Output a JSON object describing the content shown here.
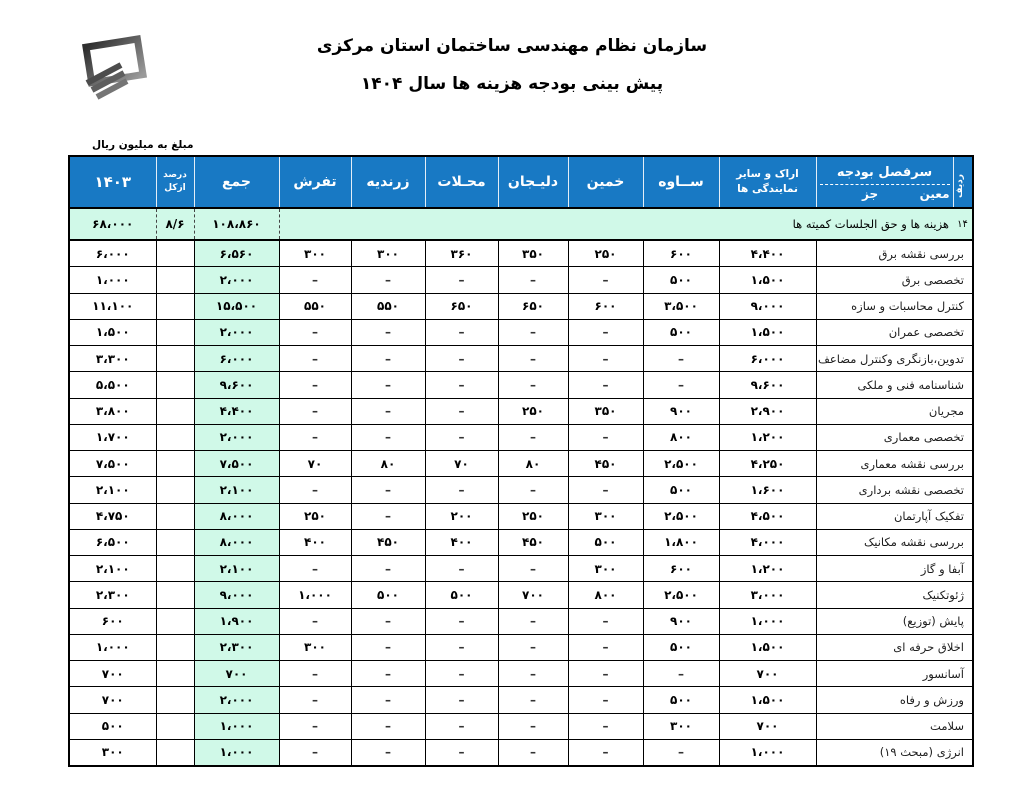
{
  "page": {
    "title_line1": "سازمان نظام مهندسی ساختمان استان مرکزی",
    "title_line2": "پیش بینی بودجه هزینه ها  سال ۱۴۰۴",
    "unit_note": "مبلغ به میلیون ریال",
    "logo": "construction-engineering-organization-logo"
  },
  "colors": {
    "header_blue": "#1879c4",
    "highlight_green": "#d0f9e8",
    "border_black": "#000000"
  },
  "table": {
    "header": {
      "radif": "ردیف",
      "budget_heading": "سرفصل بودجه",
      "moein": "معین",
      "joz": "جز",
      "arak_line1": "اراک و سایر",
      "arak_line2": "نمایندگی ها",
      "saveh": "ســاوه",
      "khomein": "خمین",
      "delijan": "دلیـجان",
      "mahallat": "محـلات",
      "zarandieh": "زرندیه",
      "tafresh": "تفرش",
      "jam": "جمع",
      "percent_line1": "درصد",
      "percent_line2": "ازکل",
      "y1403": "۱۴۰۳"
    },
    "summary_row": {
      "radif": "۱۴",
      "label": "هزینه ها و حق الجلسات کمیته ها",
      "jam": "۱۰۸،۸۶۰",
      "percent": "۸/۶",
      "y1403": "۶۸،۰۰۰"
    },
    "rows": [
      {
        "label": "بررسی نقشه برق",
        "arak": "۴،۴۰۰",
        "saveh": "۶۰۰",
        "khomein": "۲۵۰",
        "delijan": "۳۵۰",
        "mahallat": "۳۶۰",
        "zarandieh": "۳۰۰",
        "tafresh": "۳۰۰",
        "jam": "۶،۵۶۰",
        "percent": "",
        "y1403": "۶،۰۰۰"
      },
      {
        "label": "تخصصی برق",
        "arak": "۱،۵۰۰",
        "saveh": "۵۰۰",
        "khomein": "–",
        "delijan": "–",
        "mahallat": "–",
        "zarandieh": "–",
        "tafresh": "–",
        "jam": "۲،۰۰۰",
        "percent": "",
        "y1403": "۱،۰۰۰"
      },
      {
        "label": "کنترل محاسبات و سازه",
        "arak": "۹،۰۰۰",
        "saveh": "۳،۵۰۰",
        "khomein": "۶۰۰",
        "delijan": "۶۵۰",
        "mahallat": "۶۵۰",
        "zarandieh": "۵۵۰",
        "tafresh": "۵۵۰",
        "jam": "۱۵،۵۰۰",
        "percent": "",
        "y1403": "۱۱،۱۰۰"
      },
      {
        "label": "تخصصی عمران",
        "arak": "۱،۵۰۰",
        "saveh": "۵۰۰",
        "khomein": "–",
        "delijan": "–",
        "mahallat": "–",
        "zarandieh": "–",
        "tafresh": "–",
        "jam": "۲،۰۰۰",
        "percent": "",
        "y1403": "۱،۵۰۰"
      },
      {
        "label": "تدوین،بازنگری وکنترل مضاعف",
        "arak": "۶،۰۰۰",
        "saveh": "–",
        "khomein": "–",
        "delijan": "–",
        "mahallat": "–",
        "zarandieh": "–",
        "tafresh": "–",
        "jam": "۶،۰۰۰",
        "percent": "",
        "y1403": "۳،۳۰۰"
      },
      {
        "label": "شناسنامه فنی و ملکی",
        "arak": "۹،۶۰۰",
        "saveh": "–",
        "khomein": "–",
        "delijan": "–",
        "mahallat": "–",
        "zarandieh": "–",
        "tafresh": "–",
        "jam": "۹،۶۰۰",
        "percent": "",
        "y1403": "۵،۵۰۰"
      },
      {
        "label": "مجریان",
        "arak": "۲،۹۰۰",
        "saveh": "۹۰۰",
        "khomein": "۳۵۰",
        "delijan": "۲۵۰",
        "mahallat": "–",
        "zarandieh": "–",
        "tafresh": "–",
        "jam": "۴،۴۰۰",
        "percent": "",
        "y1403": "۳،۸۰۰"
      },
      {
        "label": "تخصصی معماری",
        "arak": "۱،۲۰۰",
        "saveh": "۸۰۰",
        "khomein": "–",
        "delijan": "–",
        "mahallat": "–",
        "zarandieh": "–",
        "tafresh": "–",
        "jam": "۲،۰۰۰",
        "percent": "",
        "y1403": "۱،۷۰۰"
      },
      {
        "label": "بررسی نقشه معماری",
        "arak": "۴،۲۵۰",
        "saveh": "۲،۵۰۰",
        "khomein": "۴۵۰",
        "delijan": "۸۰",
        "mahallat": "۷۰",
        "zarandieh": "۸۰",
        "tafresh": "۷۰",
        "jam": "۷،۵۰۰",
        "percent": "",
        "y1403": "۷،۵۰۰"
      },
      {
        "label": "تخصصی نقشه برداری",
        "arak": "۱،۶۰۰",
        "saveh": "۵۰۰",
        "khomein": "–",
        "delijan": "–",
        "mahallat": "–",
        "zarandieh": "–",
        "tafresh": "–",
        "jam": "۲،۱۰۰",
        "percent": "",
        "y1403": "۲،۱۰۰"
      },
      {
        "label": "تفکیک آپارتمان",
        "arak": "۴،۵۰۰",
        "saveh": "۲،۵۰۰",
        "khomein": "۳۰۰",
        "delijan": "۲۵۰",
        "mahallat": "۲۰۰",
        "zarandieh": "–",
        "tafresh": "۲۵۰",
        "jam": "۸،۰۰۰",
        "percent": "",
        "y1403": "۴،۷۵۰"
      },
      {
        "label": "بررسی نقشه مکانیک",
        "arak": "۴،۰۰۰",
        "saveh": "۱،۸۰۰",
        "khomein": "۵۰۰",
        "delijan": "۴۵۰",
        "mahallat": "۴۰۰",
        "zarandieh": "۴۵۰",
        "tafresh": "۴۰۰",
        "jam": "۸،۰۰۰",
        "percent": "",
        "y1403": "۶،۵۰۰"
      },
      {
        "label": "آبفا و گاز",
        "arak": "۱،۲۰۰",
        "saveh": "۶۰۰",
        "khomein": "۳۰۰",
        "delijan": "–",
        "mahallat": "–",
        "zarandieh": "–",
        "tafresh": "–",
        "jam": "۲،۱۰۰",
        "percent": "",
        "y1403": "۲،۱۰۰"
      },
      {
        "label": "ژئوتکنیک",
        "arak": "۳،۰۰۰",
        "saveh": "۲،۵۰۰",
        "khomein": "۸۰۰",
        "delijan": "۷۰۰",
        "mahallat": "۵۰۰",
        "zarandieh": "۵۰۰",
        "tafresh": "۱،۰۰۰",
        "jam": "۹،۰۰۰",
        "percent": "",
        "y1403": "۲،۳۰۰"
      },
      {
        "label": "پایش (توزیع)",
        "arak": "۱،۰۰۰",
        "saveh": "۹۰۰",
        "khomein": "–",
        "delijan": "–",
        "mahallat": "–",
        "zarandieh": "–",
        "tafresh": "–",
        "jam": "۱،۹۰۰",
        "percent": "",
        "y1403": "۶۰۰"
      },
      {
        "label": "اخلاق حرفه ای",
        "arak": "۱،۵۰۰",
        "saveh": "۵۰۰",
        "khomein": "–",
        "delijan": "–",
        "mahallat": "–",
        "zarandieh": "–",
        "tafresh": "۳۰۰",
        "jam": "۲،۳۰۰",
        "percent": "",
        "y1403": "۱،۰۰۰"
      },
      {
        "label": "آسانسور",
        "arak": "۷۰۰",
        "saveh": "–",
        "khomein": "–",
        "delijan": "–",
        "mahallat": "–",
        "zarandieh": "–",
        "tafresh": "–",
        "jam": "۷۰۰",
        "percent": "",
        "y1403": "۷۰۰"
      },
      {
        "label": "ورزش و رفاه",
        "arak": "۱،۵۰۰",
        "saveh": "۵۰۰",
        "khomein": "–",
        "delijan": "–",
        "mahallat": "–",
        "zarandieh": "–",
        "tafresh": "–",
        "jam": "۲،۰۰۰",
        "percent": "",
        "y1403": "۷۰۰"
      },
      {
        "label": "سلامت",
        "arak": "۷۰۰",
        "saveh": "۳۰۰",
        "khomein": "–",
        "delijan": "–",
        "mahallat": "–",
        "zarandieh": "–",
        "tafresh": "–",
        "jam": "۱،۰۰۰",
        "percent": "",
        "y1403": "۵۰۰"
      },
      {
        "label": "انرژی (مبحث ۱۹)",
        "arak": "۱،۰۰۰",
        "saveh": "–",
        "khomein": "–",
        "delijan": "–",
        "mahallat": "–",
        "zarandieh": "–",
        "tafresh": "–",
        "jam": "۱،۰۰۰",
        "percent": "",
        "y1403": "۳۰۰"
      }
    ]
  }
}
